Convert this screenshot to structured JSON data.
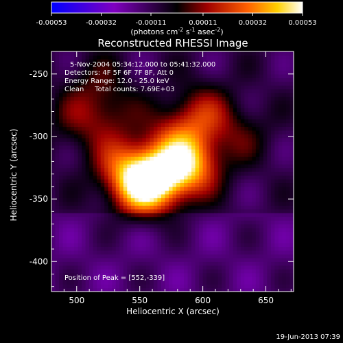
{
  "chart_data": {
    "type": "heatmap",
    "title": "Reconstructed RHESSI Image",
    "xlabel": "Heliocentric X (arcsec)",
    "ylabel": "Heliocentric Y (arcsec)",
    "xlim": [
      480,
      672
    ],
    "ylim": [
      -424,
      -232
    ],
    "x_ticks": [
      500,
      550,
      600,
      650
    ],
    "y_ticks": [
      -250,
      -300,
      -350,
      -400
    ],
    "colorbar": {
      "ticks": [
        "-0.00053",
        "-0.00032",
        "-0.00011",
        "0.00011",
        "0.00032",
        "0.00053"
      ],
      "values": [
        -0.00053,
        -0.00032,
        -0.00011,
        0.00011,
        0.00032,
        0.00053
      ],
      "range": [
        -0.00053,
        0.00053
      ],
      "unit_label_parts": [
        "(photons cm",
        "-2",
        " s",
        "-1",
        " asec",
        "-2",
        ")"
      ],
      "colors": [
        "#0000ff",
        "#8000c0",
        "#000000",
        "#a00000",
        "#ff6000",
        "#ffd000",
        "#ffffff"
      ]
    },
    "annotations": [
      "5-Nov-2004 05:34:12.000 to 05:41:32.000",
      "Detectors: 4F 5F 6F 7F 8F, Att 0",
      "Energy Range: 12.0 - 25.0 keV",
      "Clean     Total counts: 7.69E+03"
    ],
    "peak_label": "Position of Peak = [552,-339]",
    "peak": [
      552,
      -339
    ],
    "sources": [
      {
        "x": 552,
        "y": -339,
        "amp": 0.00053
      },
      {
        "x": 590,
        "y": -322,
        "amp": 0.00042
      },
      {
        "x": 568,
        "y": -330,
        "amp": 0.00035
      },
      {
        "x": 535,
        "y": -322,
        "amp": 0.00022
      },
      {
        "x": 600,
        "y": -282,
        "amp": 0.00022
      },
      {
        "x": 525,
        "y": -282,
        "amp": 0.00014
      },
      {
        "x": 500,
        "y": -288,
        "amp": 0.00012
      },
      {
        "x": 515,
        "y": -256,
        "amp": 0.0001
      },
      {
        "x": 630,
        "y": -298,
        "amp": 0.00012
      },
      {
        "x": 578,
        "y": -298,
        "amp": 0.00018
      }
    ]
  },
  "timestamp": "19-Jun-2013 07:39"
}
